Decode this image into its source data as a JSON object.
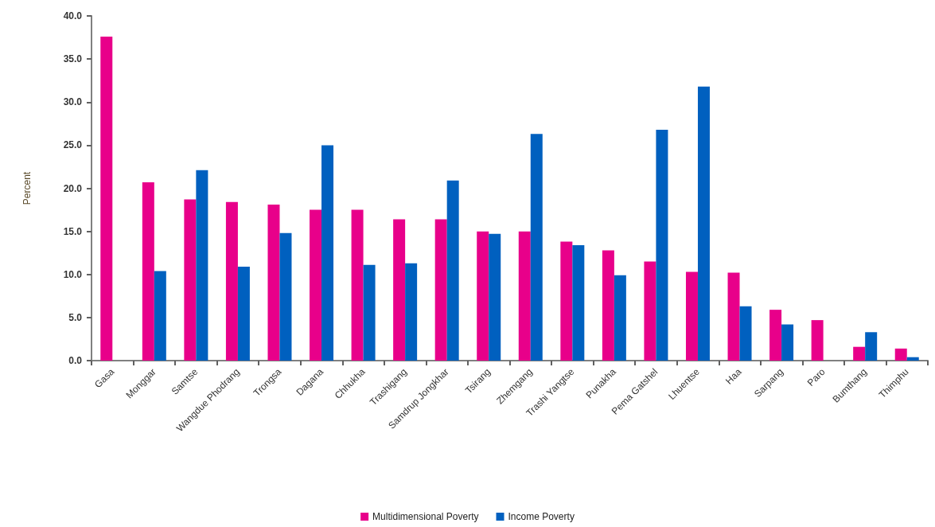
{
  "chart_data": {
    "type": "bar",
    "categories": [
      "Gasa",
      "Monggar",
      "Samtse",
      "Wangdue Phodrang",
      "Trongsa",
      "Dagana",
      "Chhukha",
      "Trashigang",
      "Samdrup Jongkhar",
      "Tsirang",
      "Zhemgang",
      "Trashi Yangtse",
      "Punakha",
      "Pema Gatshel",
      "Lhuentse",
      "Haa",
      "Sarpang",
      "Paro",
      "Bumthang",
      "Thimphu"
    ],
    "series": [
      {
        "name": "Multidimensional Poverty",
        "color": "#e8008a",
        "values": [
          37.6,
          20.7,
          18.7,
          18.4,
          18.1,
          17.5,
          17.5,
          16.4,
          16.4,
          15.0,
          15.0,
          13.8,
          12.8,
          11.5,
          10.3,
          10.2,
          5.9,
          4.7,
          1.6,
          1.4
        ]
      },
      {
        "name": "Income Poverty",
        "color": "#0060bf",
        "values": [
          null,
          10.4,
          22.1,
          10.9,
          14.8,
          25.0,
          11.1,
          11.3,
          20.9,
          14.7,
          26.3,
          13.4,
          9.9,
          26.8,
          31.8,
          6.3,
          4.2,
          null,
          3.3,
          0.4
        ]
      }
    ],
    "ylabel": "Percent",
    "ylim": [
      0,
      40
    ],
    "yticks": [
      {
        "value": 0,
        "label": "0.0"
      },
      {
        "value": 5,
        "label": "5.0"
      },
      {
        "value": 10,
        "label": "10.0"
      },
      {
        "value": 15,
        "label": "15.0"
      },
      {
        "value": 20,
        "label": "20.0"
      },
      {
        "value": 25,
        "label": "25.0"
      },
      {
        "value": 30,
        "label": "30.0"
      },
      {
        "value": 35,
        "label": "35.0"
      },
      {
        "value": 40,
        "label": "40.0"
      }
    ],
    "grid": false,
    "legend": "bottom"
  }
}
